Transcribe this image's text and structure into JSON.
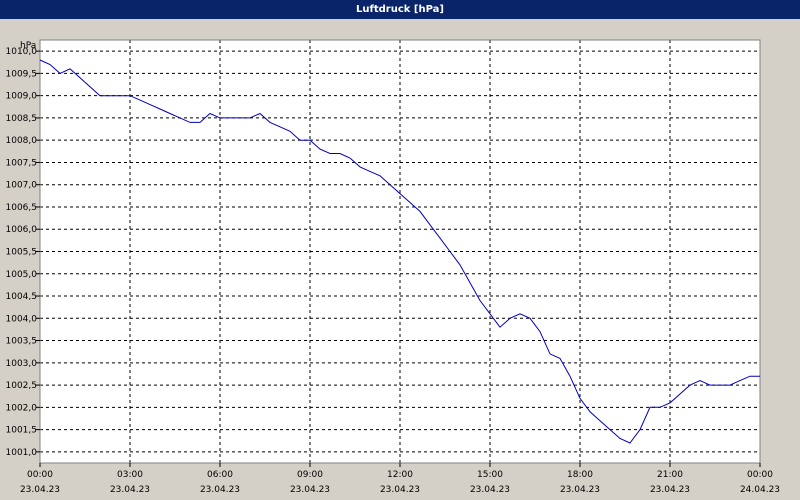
{
  "window": {
    "title": "Luftdruck [hPa]"
  },
  "chart_data": {
    "type": "line",
    "title": "Luftdruck [hPa]",
    "ylabel": "hPa",
    "xlabel": "",
    "ylim": [
      1000.75,
      1010.25
    ],
    "xlim": [
      "2023-04-23 00:00",
      "2023-04-24 00:00"
    ],
    "grid": true,
    "line_color": "#0000c0",
    "y_ticks": [
      "1001,0",
      "1001,5",
      "1002,0",
      "1002,5",
      "1003,0",
      "1003,5",
      "1004,0",
      "1004,5",
      "1005,0",
      "1005,5",
      "1006,0",
      "1006,5",
      "1007,0",
      "1007,5",
      "1008,0",
      "1008,5",
      "1009,0",
      "1009,5",
      "1010,0"
    ],
    "x_ticks": [
      {
        "time": "00:00",
        "date": "23.04.23"
      },
      {
        "time": "03:00",
        "date": "23.04.23"
      },
      {
        "time": "06:00",
        "date": "23.04.23"
      },
      {
        "time": "09:00",
        "date": "23.04.23"
      },
      {
        "time": "12:00",
        "date": "23.04.23"
      },
      {
        "time": "15:00",
        "date": "23.04.23"
      },
      {
        "time": "18:00",
        "date": "23.04.23"
      },
      {
        "time": "21:00",
        "date": "23.04.23"
      },
      {
        "time": "00:00",
        "date": "24.04.23"
      }
    ],
    "series": [
      {
        "x": [
          "2023-04-23 00:00",
          "2023-04-23 00:20",
          "2023-04-23 00:40",
          "2023-04-23 01:00",
          "2023-04-23 01:20",
          "2023-04-23 01:40",
          "2023-04-23 02:00",
          "2023-04-23 02:20",
          "2023-04-23 02:40",
          "2023-04-23 03:00",
          "2023-04-23 03:20",
          "2023-04-23 03:40",
          "2023-04-23 04:00",
          "2023-04-23 04:20",
          "2023-04-23 04:40",
          "2023-04-23 05:00",
          "2023-04-23 05:20",
          "2023-04-23 05:40",
          "2023-04-23 06:00",
          "2023-04-23 06:20",
          "2023-04-23 06:40",
          "2023-04-23 07:00",
          "2023-04-23 07:20",
          "2023-04-23 07:40",
          "2023-04-23 08:00",
          "2023-04-23 08:20",
          "2023-04-23 08:40",
          "2023-04-23 09:00",
          "2023-04-23 09:20",
          "2023-04-23 09:40",
          "2023-04-23 10:00",
          "2023-04-23 10:20",
          "2023-04-23 10:40",
          "2023-04-23 11:00",
          "2023-04-23 11:20",
          "2023-04-23 11:40",
          "2023-04-23 12:00",
          "2023-04-23 12:20",
          "2023-04-23 12:40",
          "2023-04-23 13:00",
          "2023-04-23 13:20",
          "2023-04-23 13:40",
          "2023-04-23 14:00",
          "2023-04-23 14:20",
          "2023-04-23 14:40",
          "2023-04-23 15:00",
          "2023-04-23 15:20",
          "2023-04-23 15:40",
          "2023-04-23 16:00",
          "2023-04-23 16:20",
          "2023-04-23 16:40",
          "2023-04-23 17:00",
          "2023-04-23 17:20",
          "2023-04-23 17:40",
          "2023-04-23 18:00",
          "2023-04-23 18:20",
          "2023-04-23 18:40",
          "2023-04-23 19:00",
          "2023-04-23 19:20",
          "2023-04-23 19:40",
          "2023-04-23 20:00",
          "2023-04-23 20:20",
          "2023-04-23 20:40",
          "2023-04-23 21:00",
          "2023-04-23 21:20",
          "2023-04-23 21:40",
          "2023-04-23 22:00",
          "2023-04-23 22:20",
          "2023-04-23 22:40",
          "2023-04-23 23:00",
          "2023-04-23 23:20",
          "2023-04-23 23:40",
          "2023-04-24 00:00"
        ],
        "y": [
          1009.8,
          1009.7,
          1009.5,
          1009.6,
          1009.4,
          1009.2,
          1009.0,
          1009.0,
          1009.0,
          1009.0,
          1008.9,
          1008.8,
          1008.7,
          1008.6,
          1008.5,
          1008.4,
          1008.4,
          1008.6,
          1008.5,
          1008.5,
          1008.5,
          1008.5,
          1008.6,
          1008.4,
          1008.3,
          1008.2,
          1008.0,
          1008.0,
          1007.8,
          1007.7,
          1007.7,
          1007.6,
          1007.4,
          1007.3,
          1007.2,
          1007.0,
          1006.8,
          1006.6,
          1006.4,
          1006.1,
          1005.8,
          1005.5,
          1005.2,
          1004.8,
          1004.4,
          1004.1,
          1003.8,
          1004.0,
          1004.1,
          1004.0,
          1003.7,
          1003.2,
          1003.1,
          1002.7,
          1002.2,
          1001.9,
          1001.7,
          1001.5,
          1001.3,
          1001.2,
          1001.5,
          1002.0,
          1002.0,
          1002.1,
          1002.3,
          1002.5,
          1002.6,
          1002.5,
          1002.5,
          1002.5,
          1002.6,
          1002.7,
          1002.7
        ]
      }
    ]
  }
}
